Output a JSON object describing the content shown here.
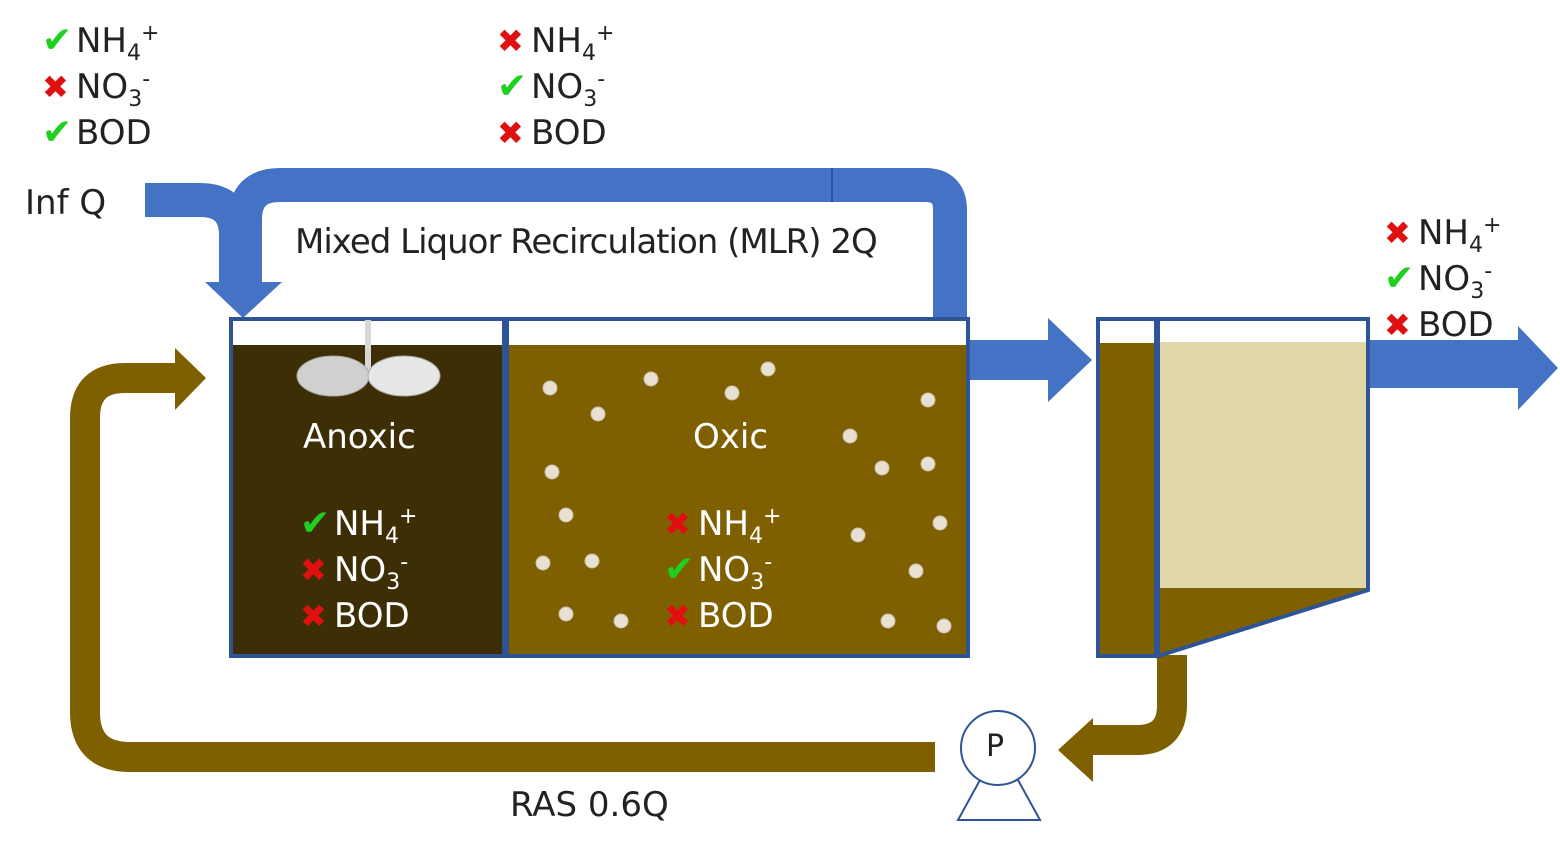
{
  "labels": {
    "inf_q": "Inf Q",
    "mlr": "Mixed Liquor Recirculation (MLR) 2Q",
    "anoxic": "Anoxic",
    "oxic": "Oxic",
    "ras": "RAS 0.6Q",
    "pump": "P"
  },
  "species": {
    "nh4": {
      "base": "NH",
      "sub": "4",
      "sup": "+"
    },
    "no3": {
      "base": "NO",
      "sub": "3",
      "sup": "-"
    },
    "bod": {
      "base": "BOD"
    }
  },
  "status_groups": [
    {
      "location": "influent",
      "nh4": "check",
      "no3": "cross",
      "bod": "check"
    },
    {
      "location": "mlr",
      "nh4": "cross",
      "no3": "check",
      "bod": "cross"
    },
    {
      "location": "anoxic",
      "nh4": "check",
      "no3": "cross",
      "bod": "cross"
    },
    {
      "location": "oxic",
      "nh4": "cross",
      "no3": "check",
      "bod": "cross"
    },
    {
      "location": "effluent",
      "nh4": "cross",
      "no3": "check",
      "bod": "cross"
    }
  ],
  "glyphs": {
    "check": "✔",
    "cross": "✖"
  },
  "colors": {
    "flow_blue": "#4472c4",
    "tank_border": "#2f5496",
    "anoxic_fill": "#3d2e05",
    "oxic_fill": "#7f6000",
    "sludge": "#7f6000",
    "clarified": "#e0d8a8",
    "bubble": "#e8e0d0",
    "check": "#1fd11f",
    "cross": "#e01010"
  }
}
